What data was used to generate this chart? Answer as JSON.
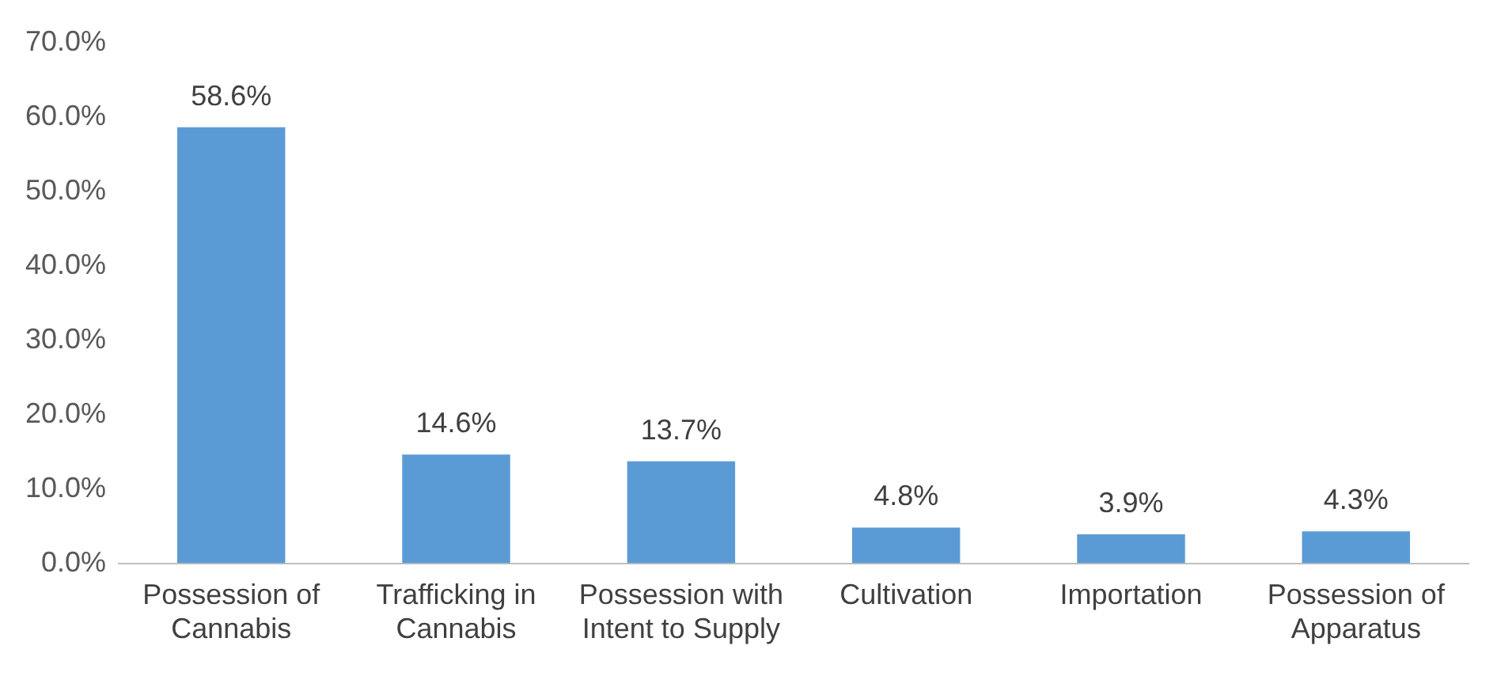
{
  "chart_data": {
    "type": "bar",
    "categories": [
      "Possession of Cannabis",
      "Trafficking in Cannabis",
      "Possession with Intent to Supply",
      "Cultivation",
      "Importation",
      "Possession of Apparatus"
    ],
    "values": [
      58.6,
      14.6,
      13.7,
      4.8,
      3.9,
      4.3
    ],
    "value_labels": [
      "58.6%",
      "14.6%",
      "13.7%",
      "4.8%",
      "3.9%",
      "4.3%"
    ],
    "color": "#5b9bd5",
    "ylim": [
      0,
      70
    ],
    "yticks": [
      {
        "value": 0,
        "label": "0.0%"
      },
      {
        "value": 10,
        "label": "10.0%"
      },
      {
        "value": 20,
        "label": "20.0%"
      },
      {
        "value": 30,
        "label": "30.0%"
      },
      {
        "value": 40,
        "label": "40.0%"
      },
      {
        "value": 50,
        "label": "50.0%"
      },
      {
        "value": 60,
        "label": "60.0%"
      },
      {
        "value": 70,
        "label": "70.0%"
      }
    ],
    "grid": false,
    "legend": false
  }
}
